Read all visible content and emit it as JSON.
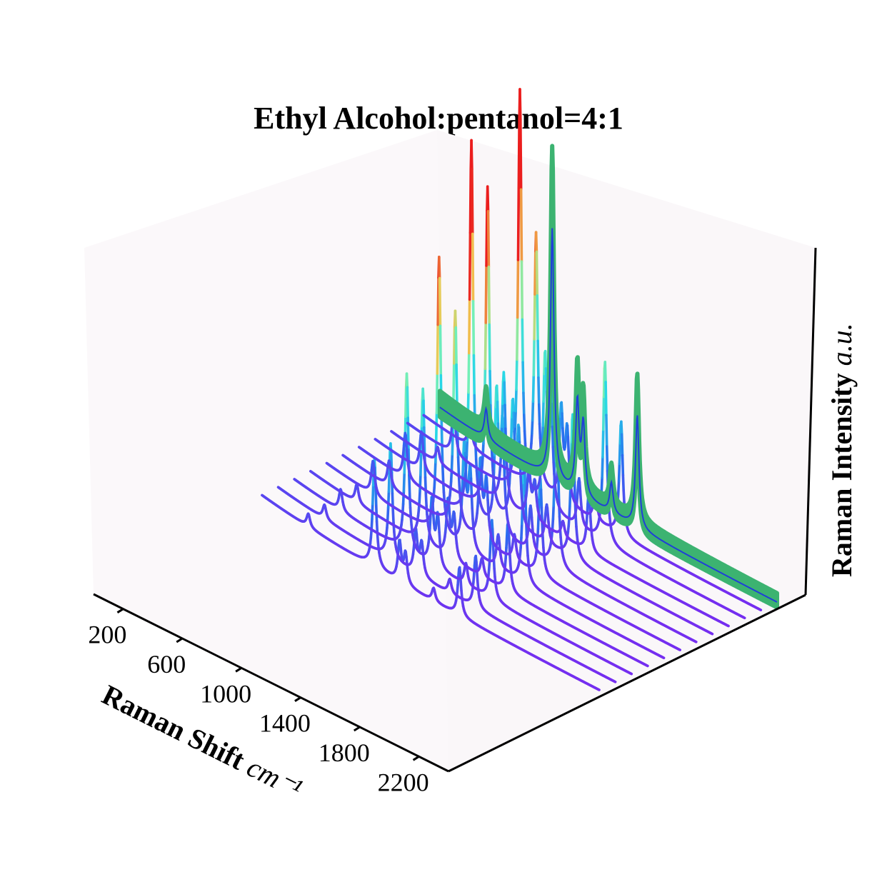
{
  "chart_data": {
    "type": "line",
    "projection": "3d-waterfall",
    "title": "Ethyl Alcohol:pentanol=4:1",
    "xlabel": "Raman Shift",
    "xlabel_unit": "cm⁻¹",
    "zlabel": "Raman Intensity",
    "zlabel_unit": "a.u.",
    "x_ticks": [
      "200",
      "600",
      "1000",
      "1400",
      "1800",
      "2200"
    ],
    "xlim": [
      0,
      2400
    ],
    "grid": false,
    "pane_color": "#fbf8fa",
    "colormap": "rainbow (purple → blue → cyan → green → yellow → red) by intensity",
    "representative_peaks": [
      {
        "x": 433,
        "rel_intensity": 0.12
      },
      {
        "x": 880,
        "rel_intensity": 1.0
      },
      {
        "x": 1050,
        "rel_intensity": 0.36
      },
      {
        "x": 1090,
        "rel_intensity": 0.28
      },
      {
        "x": 1280,
        "rel_intensity": 0.12
      },
      {
        "x": 1455,
        "rel_intensity": 0.45
      }
    ],
    "series": [
      {
        "scale": 0.42,
        "style": "stick"
      },
      {
        "scale": 0.32,
        "style": "stick"
      },
      {
        "scale": 0.92,
        "style": "stick"
      },
      {
        "scale": 1.18,
        "style": "stick"
      },
      {
        "scale": 0.62,
        "style": "stick"
      },
      {
        "scale": 1.2,
        "style": "stick"
      },
      {
        "scale": 1.38,
        "style": "stick"
      },
      {
        "scale": 1.45,
        "style": "stick"
      },
      {
        "scale": 0.28,
        "style": "spectrum"
      },
      {
        "scale": 0.3,
        "style": "spectrum"
      },
      {
        "scale": 0.46,
        "style": "spectrum"
      },
      {
        "scale": 0.4,
        "style": "spectrum"
      },
      {
        "scale": 0.72,
        "style": "spectrum"
      },
      {
        "scale": 0.56,
        "style": "spectrum"
      },
      {
        "scale": 0.98,
        "style": "spectrum"
      },
      {
        "scale": 0.84,
        "style": "spectrum"
      },
      {
        "scale": 0.34,
        "style": "spectrum"
      },
      {
        "scale": 1.05,
        "style": "spectrum"
      },
      {
        "scale": 0.66,
        "style": "spectrum"
      }
    ],
    "mean_band": {
      "scale": 0.65,
      "band_color": "#3cb371",
      "line_color": "#1f3fd8"
    }
  }
}
